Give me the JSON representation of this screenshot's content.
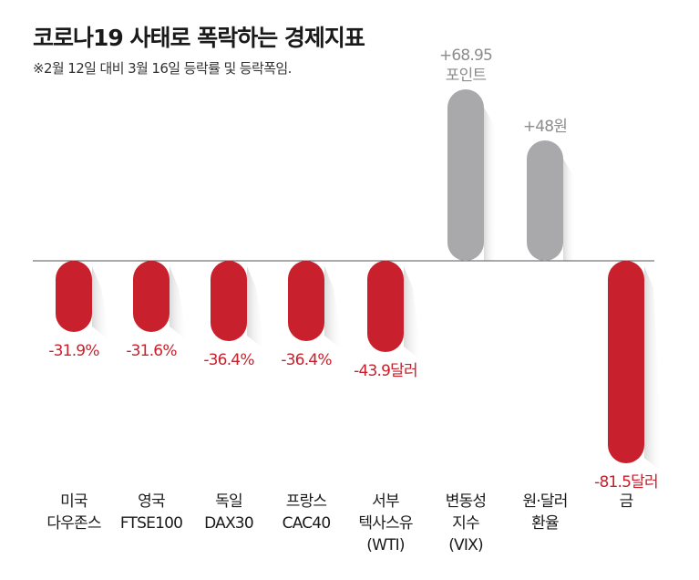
{
  "header": {
    "title": "코로나19 사태로 폭락하는 경제지표",
    "subtitle": "※2월 12일 대비 3월 16일 등락률 및 등락폭임."
  },
  "colors": {
    "negative": "#c8202c",
    "positive": "#a9a9ac",
    "negative_label": "#c8202c",
    "positive_label": "#8c8c8c"
  },
  "chart_data": {
    "type": "bar",
    "title": "코로나19 사태로 폭락하는 경제지표",
    "subtitle": "※2월 12일 대비 3월 16일 등락률 및 등락폭임.",
    "categories": [
      [
        "미국",
        "다우존스"
      ],
      [
        "영국",
        "FTSE100"
      ],
      [
        "독일",
        "DAX30"
      ],
      [
        "프랑스",
        "CAC40"
      ],
      [
        "서부",
        "텍사스유",
        "(WTI)"
      ],
      [
        "변동성",
        "지수",
        "(VIX)"
      ],
      [
        "원·달러",
        "환율"
      ],
      [
        "금"
      ]
    ],
    "values": [
      -31.9,
      -31.6,
      -36.4,
      -36.4,
      -43.9,
      68.95,
      48,
      -81.5
    ],
    "labels": [
      [
        "-31.9%"
      ],
      [
        "-31.6%"
      ],
      [
        "-36.4%"
      ],
      [
        "-36.4%"
      ],
      [
        "-43.9달러"
      ],
      [
        "+68.95",
        "포인트"
      ],
      [
        "+48원"
      ],
      [
        "-81.5달러"
      ]
    ],
    "xlabel": "",
    "ylabel": "",
    "grid": false,
    "legend": "none"
  }
}
